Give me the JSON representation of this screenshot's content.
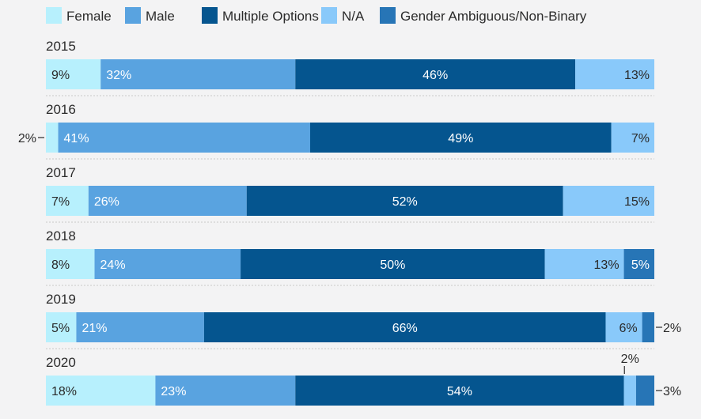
{
  "chart_data": {
    "type": "stacked-bar-horizontal",
    "legend_position": "top-left",
    "series": [
      {
        "name": "Female",
        "color": "#b7f0fd",
        "text_color": "#2a2a2a"
      },
      {
        "name": "Male",
        "color": "#59a3e0",
        "text_color": "#ffffff"
      },
      {
        "name": "Multiple Options",
        "color": "#05558f",
        "text_color": "#ffffff"
      },
      {
        "name": "N/A",
        "color": "#89c9fa",
        "text_color": "#2a2a2a"
      },
      {
        "name": "Gender Ambiguous/Non-Binary",
        "color": "#2775b6",
        "text_color": "#ffffff"
      }
    ],
    "rows": [
      {
        "year": "2015",
        "values": [
          9,
          32,
          46,
          13,
          0
        ],
        "labels": [
          "9%",
          "32%",
          "46%",
          "13%",
          ""
        ]
      },
      {
        "year": "2016",
        "values": [
          2,
          41,
          49,
          7,
          0
        ],
        "labels": [
          "2%",
          "41%",
          "49%",
          "7%",
          ""
        ]
      },
      {
        "year": "2017",
        "values": [
          7,
          26,
          52,
          15,
          0
        ],
        "labels": [
          "7%",
          "26%",
          "52%",
          "15%",
          ""
        ]
      },
      {
        "year": "2018",
        "values": [
          8,
          24,
          50,
          13,
          5
        ],
        "labels": [
          "8%",
          "24%",
          "50%",
          "13%",
          "5%"
        ]
      },
      {
        "year": "2019",
        "values": [
          5,
          21,
          66,
          6,
          2
        ],
        "labels": [
          "5%",
          "21%",
          "66%",
          "6%",
          "2%"
        ]
      },
      {
        "year": "2020",
        "values": [
          18,
          23,
          54,
          2,
          3
        ],
        "labels": [
          "18%",
          "23%",
          "54%",
          "2%",
          "3%"
        ]
      }
    ],
    "callouts": [
      {
        "year": "2016",
        "series": "Female",
        "text": "2%",
        "side": "left"
      },
      {
        "year": "2019",
        "series": "Gender Ambiguous/Non-Binary",
        "text": "2%",
        "side": "right"
      },
      {
        "year": "2020",
        "series": "N/A",
        "text": "2%",
        "side": "top"
      },
      {
        "year": "2020",
        "series": "Gender Ambiguous/Non-Binary",
        "text": "3%",
        "side": "right"
      }
    ],
    "xlim": [
      0,
      100
    ]
  }
}
